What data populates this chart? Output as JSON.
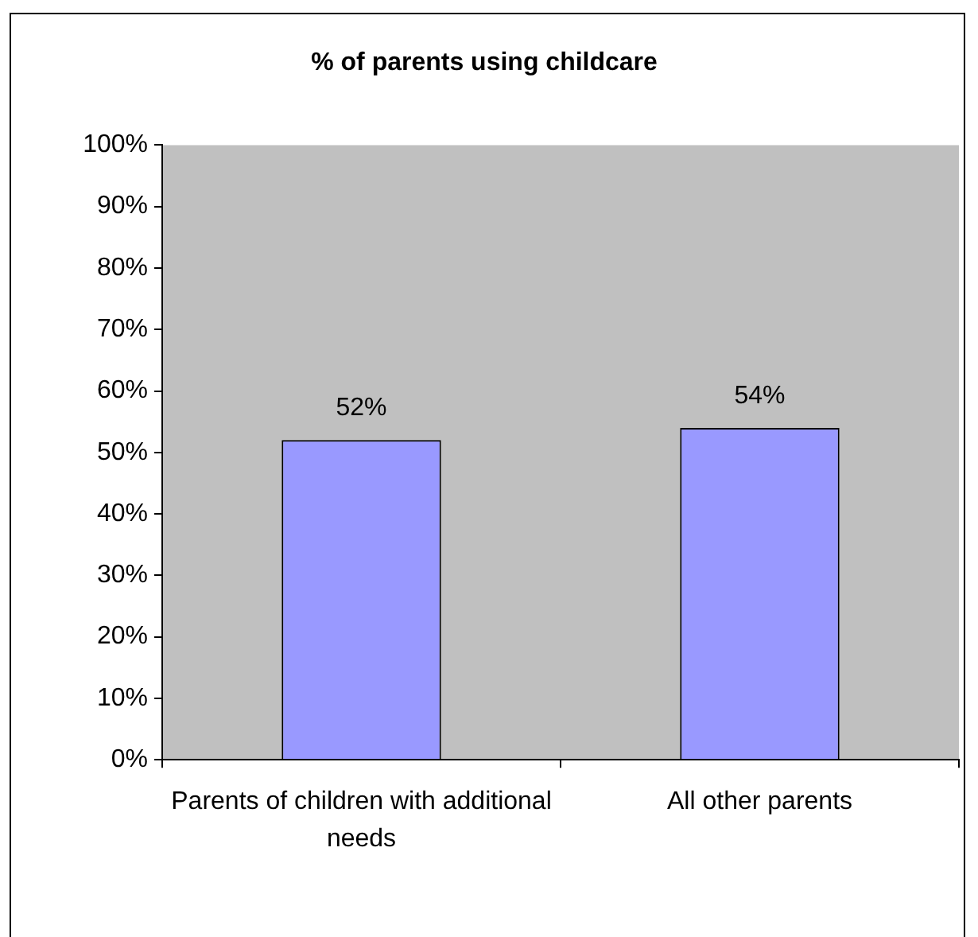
{
  "chart_data": {
    "type": "bar",
    "title": "% of parents using childcare",
    "categories": [
      "Parents of children with additional needs",
      "All other parents"
    ],
    "values": [
      52,
      54
    ],
    "color": "#9999ff",
    "value_labels": [
      "52%",
      "54%"
    ],
    "ylim": [
      0,
      100
    ],
    "yticks": [
      {
        "value": 0,
        "label": "0%"
      },
      {
        "value": 10,
        "label": "10%"
      },
      {
        "value": 20,
        "label": "20%"
      },
      {
        "value": 30,
        "label": "30%"
      },
      {
        "value": 40,
        "label": "40%"
      },
      {
        "value": 50,
        "label": "50%"
      },
      {
        "value": 60,
        "label": "60%"
      },
      {
        "value": 70,
        "label": "70%"
      },
      {
        "value": 80,
        "label": "80%"
      },
      {
        "value": 90,
        "label": "90%"
      },
      {
        "value": 100,
        "label": "100%"
      }
    ]
  }
}
